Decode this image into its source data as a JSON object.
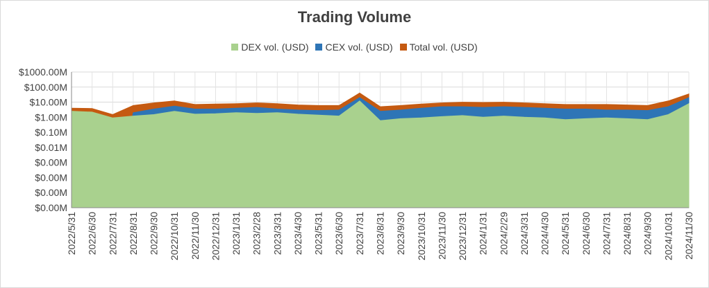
{
  "chart_data": {
    "type": "area",
    "title": "Trading Volume",
    "xlabel": "",
    "ylabel": "",
    "y_scale": "log",
    "y_ticks": [
      "$0.00M",
      "$0.00M",
      "$0.00M",
      "$0.00M",
      "$0.01M",
      "$0.10M",
      "$1.00M",
      "$10.00M",
      "$100.00M",
      "$1000.00M"
    ],
    "ylim": [
      1e-06,
      1000
    ],
    "x_ticks": [
      "2022/5/31",
      "2022/6/30",
      "2022/7/31",
      "2022/8/31",
      "2022/9/30",
      "2022/10/31",
      "2022/11/30",
      "2022/12/31",
      "2023/1/31",
      "2023/2/28",
      "2023/3/31",
      "2023/4/30",
      "2023/5/31",
      "2023/6/30",
      "2023/7/31",
      "2023/8/31",
      "2023/9/30",
      "2023/10/31",
      "2023/11/30",
      "2023/12/31",
      "2024/1/31",
      "2024/2/29",
      "2024/3/31",
      "2024/4/30",
      "2024/5/31",
      "2024/6/30",
      "2024/7/31",
      "2024/8/31",
      "2024/9/30",
      "2024/10/31",
      "2024/11/30"
    ],
    "grid": true,
    "legend_position": "top",
    "series": [
      {
        "name": "DEX vol. (USD)",
        "color": "#a9d18e",
        "values": [
          2.5,
          2.2,
          0.9,
          1.2,
          1.5,
          2.5,
          1.6,
          1.7,
          2.0,
          1.8,
          2.0,
          1.6,
          1.4,
          1.2,
          12.0,
          0.6,
          0.8,
          0.9,
          1.1,
          1.3,
          1.0,
          1.2,
          1.0,
          0.9,
          0.7,
          0.8,
          0.9,
          0.8,
          0.7,
          1.5,
          8.0
        ]
      },
      {
        "name": "CEX vol. (USD)",
        "color": "#2e75b6",
        "values": [
          0.0,
          0.0,
          0.0,
          2.0,
          3.5,
          5.5,
          3.5,
          3.5,
          4.0,
          4.5,
          3.5,
          3.0,
          2.8,
          3.0,
          20.0,
          2.5,
          3.0,
          4.0,
          5.0,
          5.0,
          4.5,
          5.0,
          4.5,
          4.0,
          3.5,
          3.5,
          3.0,
          3.0,
          2.8,
          5.0,
          20.0
        ]
      },
      {
        "name": "Total vol. (USD)",
        "color": "#c55a11",
        "values": [
          4.0,
          3.8,
          1.5,
          6.0,
          9.0,
          12.0,
          7.0,
          7.5,
          8.0,
          9.0,
          8.0,
          6.5,
          6.0,
          6.0,
          40.0,
          5.0,
          6.0,
          7.5,
          9.0,
          10.0,
          9.5,
          10.0,
          9.0,
          8.0,
          7.0,
          7.0,
          7.0,
          6.5,
          6.0,
          12.0,
          35.0
        ]
      }
    ]
  }
}
